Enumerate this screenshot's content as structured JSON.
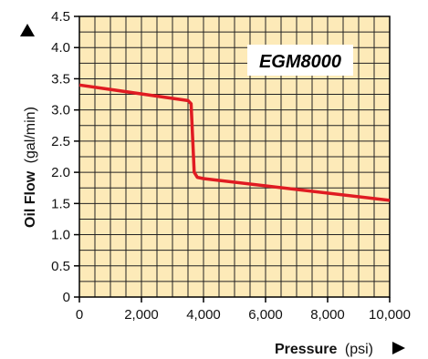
{
  "chart_data": {
    "type": "line",
    "annotation": "EGM8000",
    "ylabel_bold": "Oil Flow",
    "ylabel_unit": "(gal/min)",
    "xlabel_bold": "Pressure",
    "xlabel_unit": "(psi)",
    "xlim": [
      0,
      10000
    ],
    "ylim": [
      0,
      4.5
    ],
    "x_ticks": [
      0,
      2000,
      4000,
      6000,
      8000,
      10000
    ],
    "x_tick_labels": [
      "0",
      "2,000",
      "4,000",
      "6,000",
      "8,000",
      "10,000"
    ],
    "y_ticks": [
      0,
      0.5,
      1.0,
      1.5,
      2.0,
      2.5,
      3.0,
      3.5,
      4.0,
      4.5
    ],
    "y_tick_labels": [
      "0",
      "0.5",
      "1.0",
      "1.5",
      "2.0",
      "2.5",
      "3.0",
      "3.5",
      "4.0",
      "4.5"
    ],
    "x_minor_step": 500,
    "y_minor_step": 0.25,
    "grid": true,
    "series": [
      {
        "x": [
          0,
          3500,
          3600,
          3700,
          3800,
          4000,
          10000
        ],
        "y": [
          3.4,
          3.15,
          3.1,
          2.0,
          1.92,
          1.9,
          1.55
        ]
      }
    ],
    "colors": {
      "plot_bg": "#fdeab8",
      "grid": "#222222",
      "line": "#e01b22",
      "annotation_bg": "#ffffff"
    }
  }
}
